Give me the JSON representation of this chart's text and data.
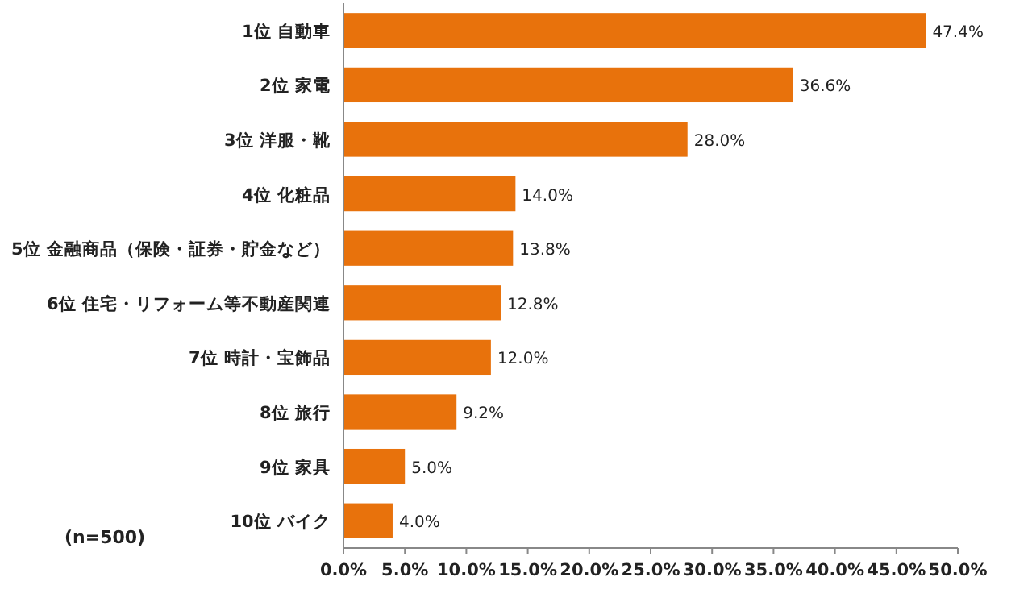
{
  "chart_data": {
    "type": "bar",
    "orientation": "horizontal",
    "categories": [
      "1位 自動車",
      "2位 家電",
      "3位 洋服・靴",
      "4位 化粧品",
      "5位 金融商品（保険・証券・貯金など）",
      "6位 住宅・リフォーム等不動産関連",
      "7位 時計・宝飾品",
      "8位 旅行",
      "9位 家具",
      "10位 バイク"
    ],
    "values": [
      47.4,
      36.6,
      28.0,
      14.0,
      13.8,
      12.8,
      12.0,
      9.2,
      5.0,
      4.0
    ],
    "value_labels": [
      "47.4%",
      "36.6%",
      "28.0%",
      "14.0%",
      "13.8%",
      "12.8%",
      "12.0%",
      "9.2%",
      "5.0%",
      "4.0%"
    ],
    "color": "#e8720c",
    "xlim": [
      0,
      50
    ],
    "xticks": [
      {
        "value": 0,
        "label": "0.0%"
      },
      {
        "value": 5,
        "label": "5.0%"
      },
      {
        "value": 10,
        "label": "10.0%"
      },
      {
        "value": 15,
        "label": "15.0%"
      },
      {
        "value": 20,
        "label": "20.0%"
      },
      {
        "value": 25,
        "label": "25.0%"
      },
      {
        "value": 30,
        "label": "30.0%"
      },
      {
        "value": 35,
        "label": "35.0%"
      },
      {
        "value": 40,
        "label": "40.0%"
      },
      {
        "value": 45,
        "label": "45.0%"
      },
      {
        "value": 50,
        "label": "50.0%"
      }
    ],
    "annotations": [
      "(n=500)"
    ],
    "grid": false
  }
}
